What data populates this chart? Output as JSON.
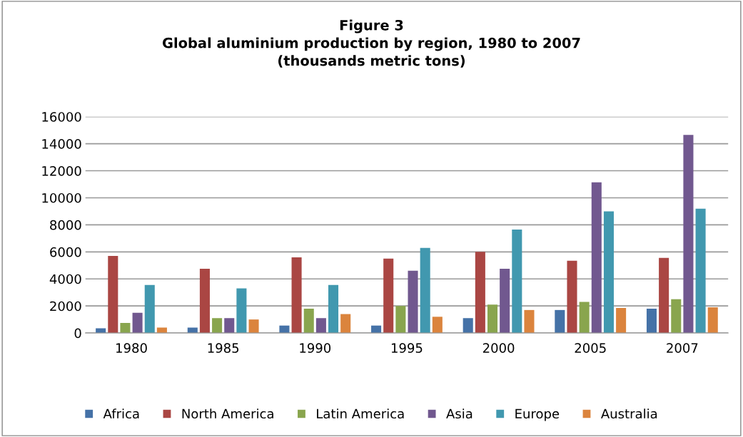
{
  "chart_data": {
    "type": "bar",
    "title": "Figure 3\nGlobal aluminium production by region, 1980 to 2007\n(thousands metric tons)",
    "categories": [
      "1980",
      "1985",
      "1990",
      "1995",
      "2000",
      "2005",
      "2007"
    ],
    "series": [
      {
        "name": "Africa",
        "color": "#4572a7",
        "values": [
          350,
          400,
          550,
          550,
          1100,
          1700,
          1800
        ]
      },
      {
        "name": "North America",
        "color": "#aa4643",
        "values": [
          5700,
          4750,
          5600,
          5500,
          6000,
          5350,
          5550
        ]
      },
      {
        "name": "Latin America",
        "color": "#89a54e",
        "values": [
          750,
          1100,
          1800,
          2000,
          2100,
          2300,
          2500
        ]
      },
      {
        "name": "Asia",
        "color": "#71588f",
        "values": [
          1500,
          1100,
          1100,
          4600,
          4750,
          11150,
          14650
        ]
      },
      {
        "name": "Europe",
        "color": "#4198af",
        "values": [
          3550,
          3300,
          3550,
          6300,
          7650,
          9000,
          9200
        ]
      },
      {
        "name": "Australia",
        "color": "#db843d",
        "values": [
          400,
          1000,
          1400,
          1200,
          1700,
          1850,
          1900
        ]
      }
    ],
    "ylim": [
      0,
      16000
    ],
    "yticks": [
      0,
      2000,
      4000,
      6000,
      8000,
      10000,
      12000,
      14000,
      16000
    ],
    "grid": "y",
    "legend": "bottom"
  }
}
